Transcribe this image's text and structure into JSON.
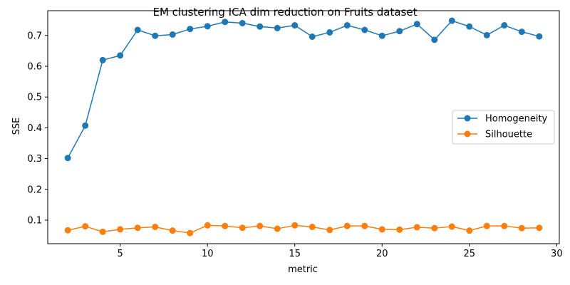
{
  "chart_data": {
    "type": "line",
    "title": "EM clustering ICA dim reduction on Fruits dataset",
    "xlabel": "metric",
    "ylabel": "SSE",
    "xlim": [
      0.85,
      30.15
    ],
    "ylim": [
      0.0235,
      0.7805
    ],
    "xticks": [
      5,
      10,
      15,
      20,
      25,
      30
    ],
    "yticks": [
      0.1,
      0.2,
      0.3,
      0.4,
      0.5,
      0.6,
      0.7
    ],
    "grid": false,
    "legend_position": "center-right",
    "x": [
      2,
      3,
      4,
      5,
      6,
      7,
      8,
      9,
      10,
      11,
      12,
      13,
      14,
      15,
      16,
      17,
      18,
      19,
      20,
      21,
      22,
      23,
      24,
      25,
      26,
      27,
      28,
      29
    ],
    "series": [
      {
        "name": "Homogeneity",
        "color": "#1f77b4",
        "values": [
          0.302,
          0.407,
          0.62,
          0.635,
          0.718,
          0.699,
          0.703,
          0.721,
          0.73,
          0.744,
          0.74,
          0.729,
          0.724,
          0.733,
          0.696,
          0.71,
          0.733,
          0.718,
          0.699,
          0.714,
          0.737,
          0.686,
          0.748,
          0.729,
          0.701,
          0.733,
          0.712,
          0.697
        ]
      },
      {
        "name": "Silhouette",
        "color": "#ff7f0e",
        "values": [
          0.067,
          0.08,
          0.062,
          0.07,
          0.075,
          0.078,
          0.066,
          0.058,
          0.083,
          0.081,
          0.075,
          0.081,
          0.072,
          0.083,
          0.078,
          0.068,
          0.081,
          0.081,
          0.07,
          0.069,
          0.077,
          0.074,
          0.079,
          0.066,
          0.081,
          0.081,
          0.074,
          0.075
        ]
      }
    ]
  }
}
